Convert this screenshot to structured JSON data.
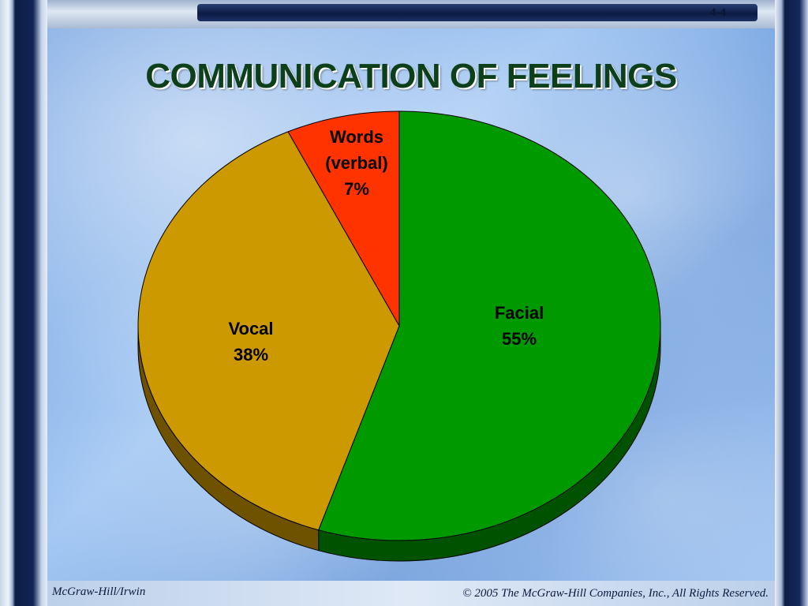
{
  "header": {
    "page_number": "4-4"
  },
  "slide": {
    "title": "COMMUNICATION OF FEELINGS"
  },
  "footer": {
    "left": "McGraw-Hill/Irwin",
    "right": "© 2005 The McGraw-Hill Companies, Inc., All Rights Reserved."
  },
  "chart_data": {
    "type": "pie",
    "title": "COMMUNICATION OF FEELINGS",
    "style": "3d",
    "slices": [
      {
        "label": "Facial",
        "value": 55,
        "value_label": "55%",
        "color": "#009900",
        "side_color": "#005200"
      },
      {
        "label": "Vocal",
        "value": 38,
        "value_label": "38%",
        "color": "#cc9900",
        "side_color": "#6e5200"
      },
      {
        "label": "Words\n(verbal)",
        "value": 7,
        "value_label": "7%",
        "color": "#ff3300",
        "side_color": "#8a1a00"
      }
    ]
  }
}
